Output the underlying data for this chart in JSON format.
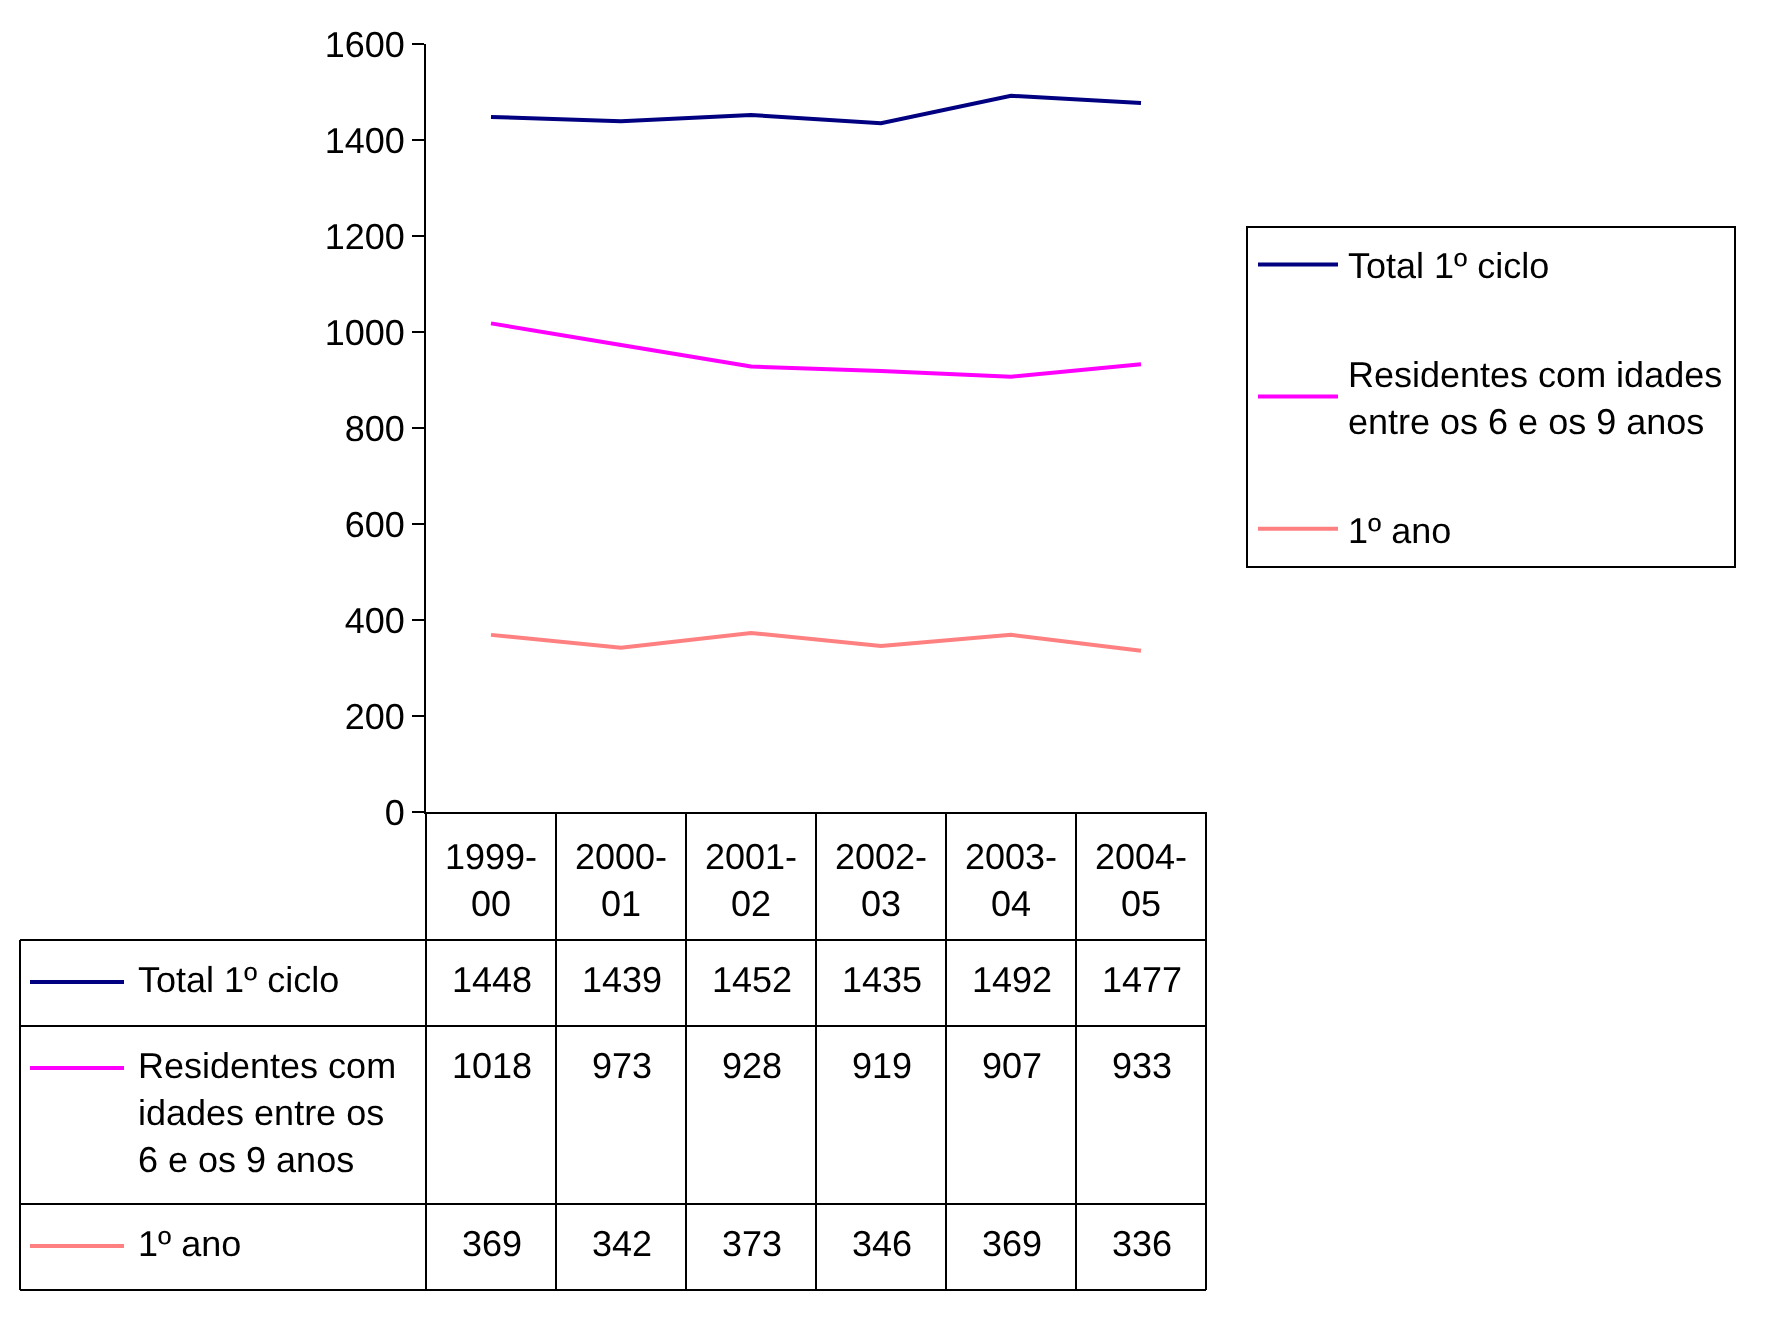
{
  "chart_data": {
    "type": "line",
    "categories": [
      "1999-00",
      "2000-01",
      "2001-02",
      "2002-03",
      "2003-04",
      "2004-05"
    ],
    "series": [
      {
        "name": "Total 1º ciclo",
        "color": "#000080",
        "values": [
          1448,
          1439,
          1452,
          1435,
          1492,
          1477
        ]
      },
      {
        "name": "Residentes com idades entre os 6 e os 9 anos",
        "color": "#ff00ff",
        "values": [
          1018,
          973,
          928,
          919,
          907,
          933
        ]
      },
      {
        "name": "1º ano",
        "color": "#ff8080",
        "values": [
          369,
          342,
          373,
          346,
          369,
          336
        ]
      }
    ],
    "ylim": [
      0,
      1600
    ],
    "yticks": [
      0,
      200,
      400,
      600,
      800,
      1000,
      1200,
      1400,
      1600
    ],
    "data_labels": true,
    "legend": "right"
  }
}
